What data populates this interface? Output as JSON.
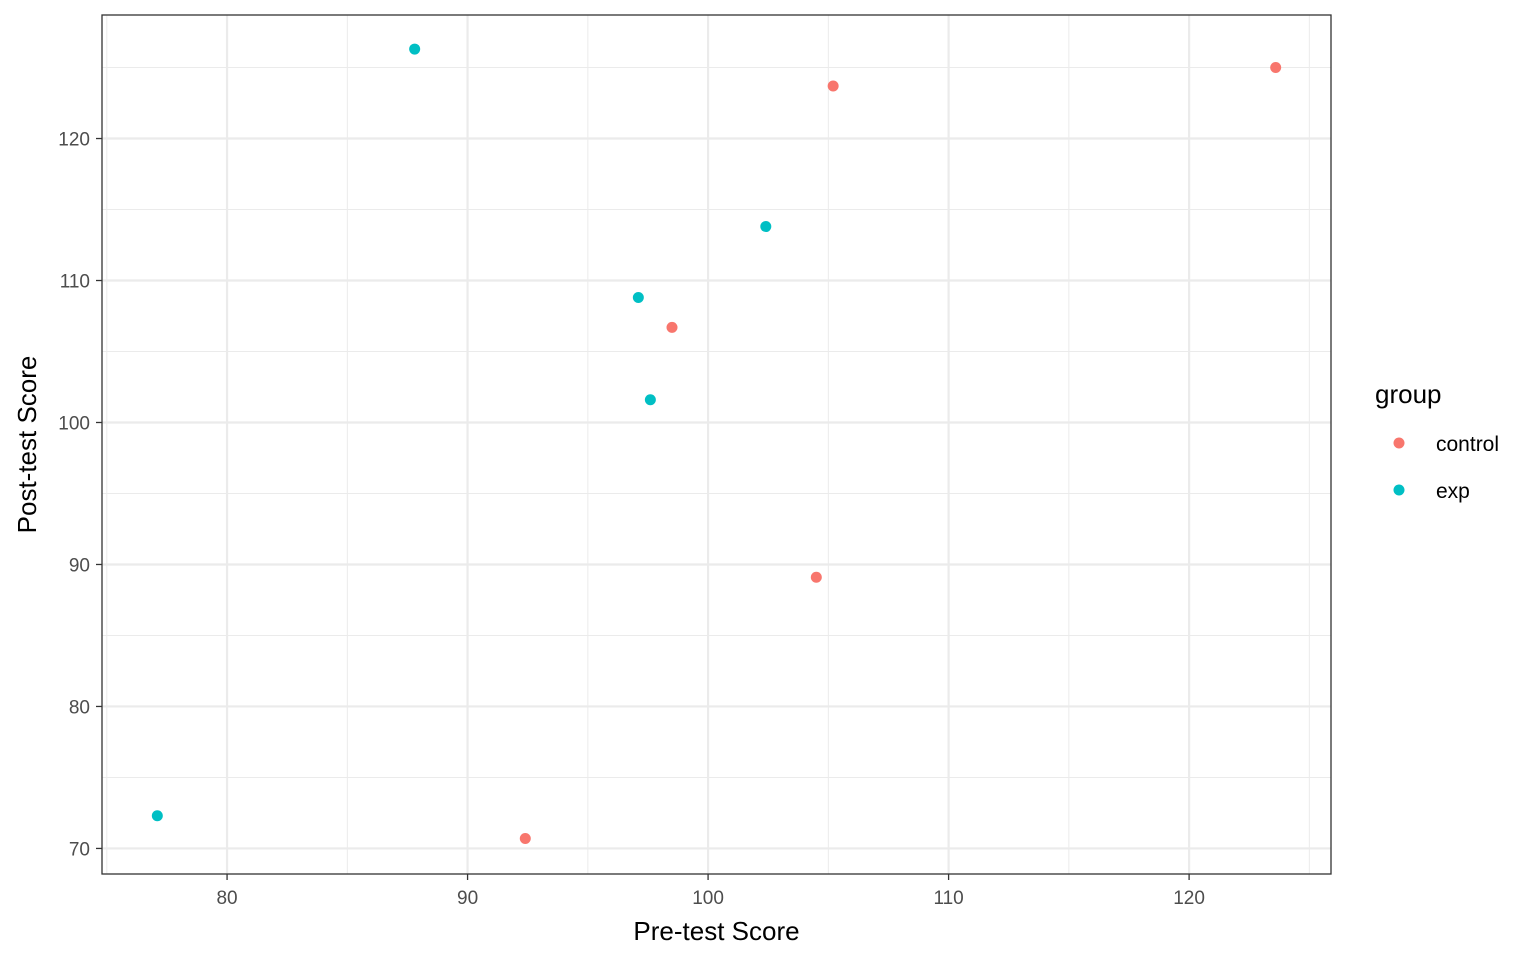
{
  "chart_data": {
    "type": "scatter",
    "title": "",
    "xlabel": "Pre-test Score",
    "ylabel": "Post-test Score",
    "xlim": [
      74.8,
      125.9
    ],
    "ylim": [
      68.2,
      128.7
    ],
    "x_ticks": [
      80,
      90,
      100,
      110,
      120
    ],
    "y_ticks": [
      70,
      80,
      90,
      100,
      110,
      120
    ],
    "grid": true,
    "legend": {
      "title": "group",
      "placement": "right"
    },
    "series": [
      {
        "name": "control",
        "color": "#F8766D",
        "points": [
          {
            "x": 105.2,
            "y": 123.7
          },
          {
            "x": 123.6,
            "y": 125.0
          },
          {
            "x": 98.5,
            "y": 106.7
          },
          {
            "x": 104.5,
            "y": 89.1
          },
          {
            "x": 92.4,
            "y": 70.7
          }
        ]
      },
      {
        "name": "exp",
        "color": "#00BFC4",
        "points": [
          {
            "x": 87.8,
            "y": 126.3
          },
          {
            "x": 102.4,
            "y": 113.8
          },
          {
            "x": 97.1,
            "y": 108.8
          },
          {
            "x": 97.6,
            "y": 101.6
          },
          {
            "x": 77.1,
            "y": 72.3
          }
        ]
      }
    ]
  }
}
